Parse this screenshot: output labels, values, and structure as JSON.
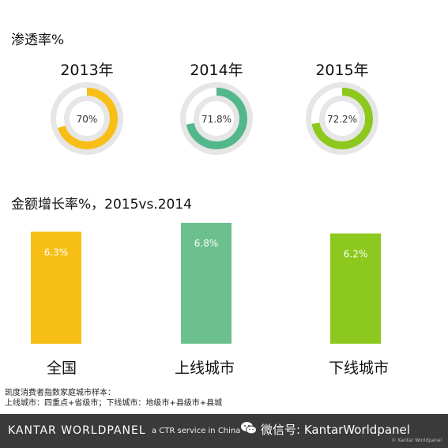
{
  "penetration_title": "渗透率%",
  "growth_title": "金额增长率%，2015vs.2014",
  "chart_data": [
    {
      "type": "pie",
      "categories": [
        "2013年",
        "2014年",
        "2015年"
      ],
      "values": [
        70,
        71.8,
        72.2
      ],
      "value_labels": [
        "70%",
        "71.8%",
        "72.2%"
      ],
      "colors": [
        "#f7be16",
        "#52b78a",
        "#8cc81e"
      ]
    },
    {
      "type": "bar",
      "categories": [
        "全国",
        "上线城市",
        "下线城市"
      ],
      "values": [
        6.3,
        6.8,
        6.2
      ],
      "value_labels": [
        "6.3%",
        "6.8%",
        "6.2%"
      ],
      "colors": [
        "#f7be16",
        "#6cc08e",
        "#8cc81e"
      ]
    }
  ],
  "notes": {
    "line1": "凯度消费者指数家庭城市样本：",
    "line2": "上线城市：四重点+省级市；下线城市：地级市+县级市+县城"
  },
  "footer": {
    "brand": "KANTAR WORLDPANEL",
    "ctr": "a CTR service in China",
    "wechat": "微信号: KantarWorldpanel",
    "copyright": "© Kantar Worldpanel"
  }
}
